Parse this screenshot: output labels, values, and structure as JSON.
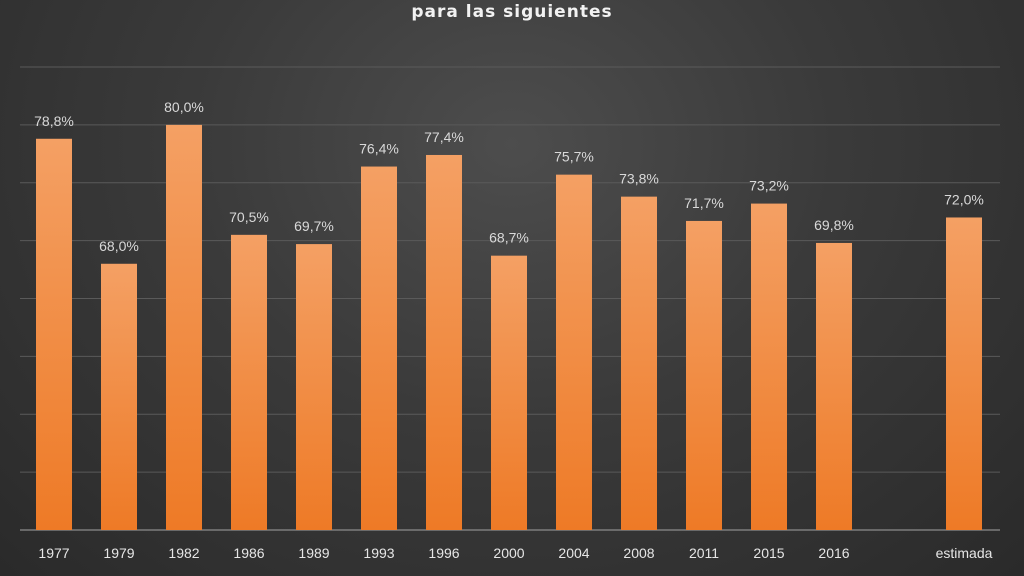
{
  "chart_data": {
    "type": "bar",
    "title": "para las siguientes",
    "categories": [
      "1977",
      "1979",
      "1982",
      "1986",
      "1989",
      "1993",
      "1996",
      "2000",
      "2004",
      "2008",
      "2011",
      "2015",
      "2016",
      "estimada"
    ],
    "values": [
      78.8,
      68.0,
      80.0,
      70.5,
      69.7,
      76.4,
      77.4,
      68.7,
      75.7,
      73.8,
      71.7,
      73.2,
      69.8,
      72.0
    ],
    "data_labels": [
      "78,8%",
      "68,0%",
      "80,0%",
      "70,5%",
      "69,7%",
      "76,4%",
      "77,4%",
      "68,7%",
      "75,7%",
      "73,8%",
      "71,7%",
      "73,2%",
      "69,8%",
      "72,0%"
    ],
    "xlabel": "",
    "ylabel": "",
    "ylim": [
      45,
      85
    ],
    "gridlines": [
      45,
      50,
      55,
      60,
      65,
      70,
      75,
      80,
      85
    ],
    "grid": true,
    "legend": "none",
    "colors": {
      "bar_top": "#f4a064",
      "bar_bottom": "#ee7a26"
    }
  }
}
